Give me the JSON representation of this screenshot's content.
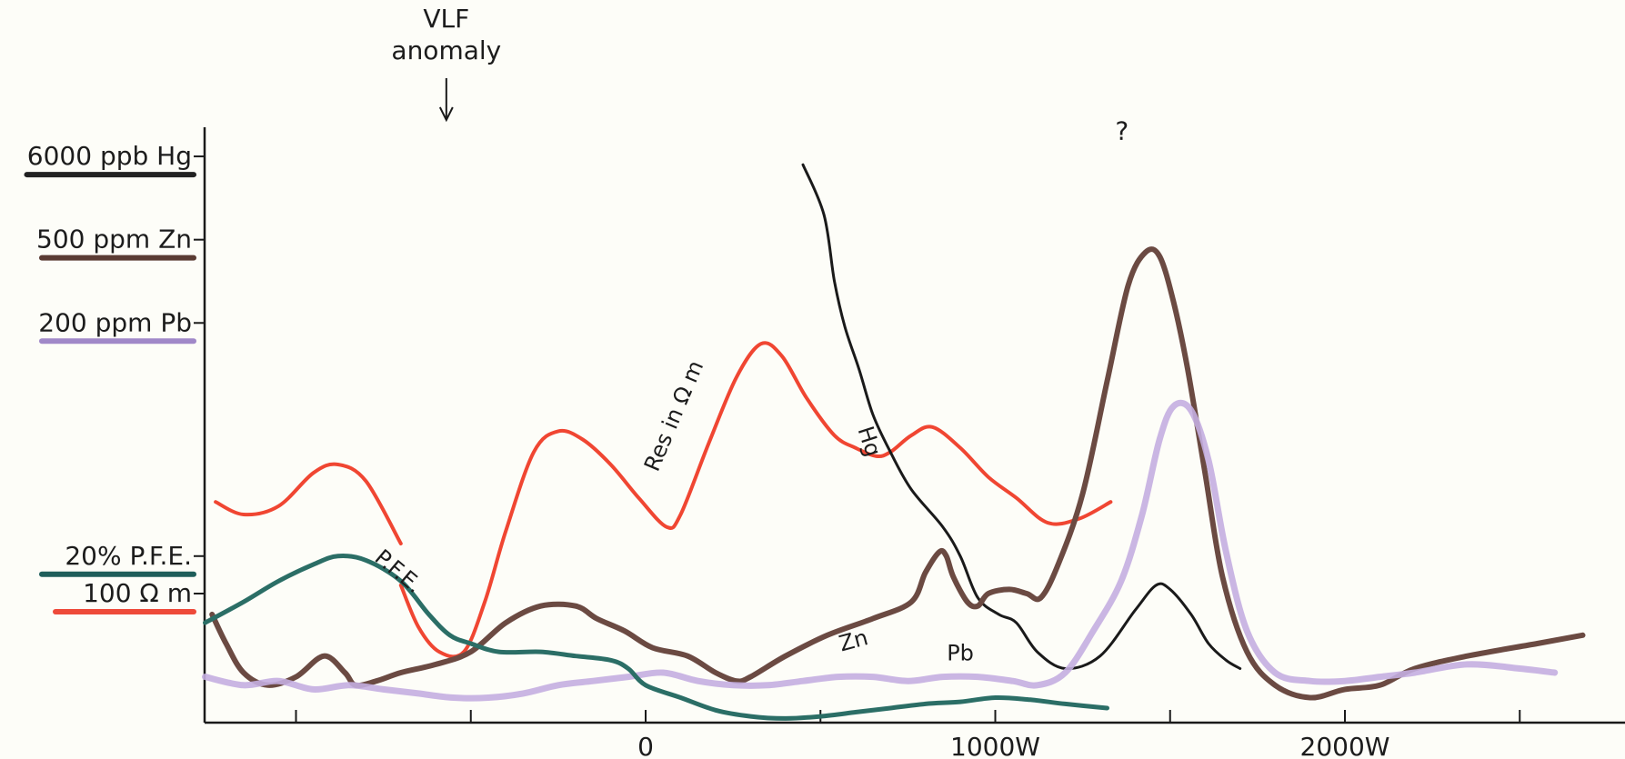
{
  "chart_data": {
    "type": "line",
    "annotation": {
      "line1": "VLF",
      "line2": "anomaly",
      "x": -570
    },
    "x_ticks": [
      {
        "value": -1000,
        "label": ""
      },
      {
        "value": -500,
        "label": ""
      },
      {
        "value": 0,
        "label": "0"
      },
      {
        "value": 500,
        "label": ""
      },
      {
        "value": 1000,
        "label": "1000W"
      },
      {
        "value": 1500,
        "label": ""
      },
      {
        "value": 2000,
        "label": "2000W"
      },
      {
        "value": 2500,
        "label": ""
      }
    ],
    "xlim": [
      -1250,
      2750
    ],
    "y_scale_labels": [
      {
        "text": "6000 ppb Hg",
        "y": 13.6,
        "color": "#222222"
      },
      {
        "text": "500 ppm Zn",
        "y": 11.6,
        "color": "#5a3b33"
      },
      {
        "text": "200 ppm Pb",
        "y": 9.6,
        "color": "#a088c8"
      },
      {
        "text": "20% P.F.E.",
        "y": 4.0,
        "color": "#1e5e5a"
      },
      {
        "text": "100 Ω m",
        "y": 3.1,
        "color": "#ee4a3a"
      }
    ],
    "ylim": [
      0,
      14.3
    ],
    "series": [
      {
        "name": "Res in Ω m",
        "color": "#f04632",
        "width": 4,
        "label": {
          "text": "Res in Ω m",
          "x": 100,
          "y": 7.3,
          "angle": -67
        },
        "segments": [
          {
            "x": [
              -1230,
              -1150,
              -1050,
              -950,
              -880,
              -800,
              -700
            ],
            "y": [
              5.3,
              5.0,
              5.2,
              6.0,
              6.2,
              5.8,
              4.3
            ]
          },
          {
            "x": [
              -700,
              -650,
              -590,
              -520,
              -460,
              -400,
              -320,
              -250,
              -180,
              -100,
              -20,
              60,
              100,
              180,
              260,
              330,
              390,
              460,
              540,
              600,
              660,
              700,
              760,
              820,
              900,
              980,
              1060,
              1150,
              1240,
              1330
            ],
            "y": [
              3.3,
              2.3,
              1.7,
              1.7,
              2.9,
              4.6,
              6.5,
              7.0,
              6.8,
              6.2,
              5.4,
              4.7,
              5.0,
              6.7,
              8.3,
              9.1,
              8.8,
              7.8,
              6.9,
              6.6,
              6.4,
              6.5,
              6.9,
              7.1,
              6.6,
              5.9,
              5.4,
              4.8,
              4.9,
              5.3
            ]
          }
        ]
      },
      {
        "name": "Hg",
        "color": "#1a1a1a",
        "width": 3,
        "label": {
          "text": "Hg",
          "x": 620,
          "y": 6.7,
          "angle": 72
        },
        "segments": [
          {
            "x": [
              450,
              510,
              540,
              570,
              610,
              650,
              700,
              760,
              850,
              900,
              950,
              1010,
              1060,
              1120,
              1200,
              1300,
              1400,
              1460,
              1500,
              1560,
              1610,
              1660,
              1700
            ],
            "y": [
              13.4,
              12.2,
              10.6,
              9.5,
              8.5,
              7.4,
              6.5,
              5.6,
              4.7,
              4.0,
              3.0,
              2.6,
              2.4,
              1.7,
              1.3,
              1.6,
              2.7,
              3.3,
              3.2,
              2.6,
              1.9,
              1.5,
              1.3
            ]
          }
        ]
      },
      {
        "name": "Zn",
        "color": "#6b4a42",
        "width": 6,
        "label": {
          "text": "Zn",
          "x": 600,
          "y": 1.8,
          "angle": -15
        },
        "segments": [
          {
            "x": [
              -1240,
              -1200,
              -1150,
              -1080,
              -1000,
              -920,
              -860,
              -830,
              -770,
              -700,
              -600,
              -500,
              -400,
              -300,
              -200,
              -140,
              -60,
              20,
              120,
              200,
              260,
              300,
              400,
              520,
              650,
              760,
              800,
              840,
              860,
              880,
              920,
              950,
              980,
              1040,
              1090,
              1130,
              1180,
              1250,
              1320,
              1380,
              1430,
              1470,
              1510,
              1550,
              1600,
              1650,
              1720,
              1800,
              1900,
              2000,
              2100,
              2200,
              2350,
              2550,
              2680
            ],
            "y": [
              2.6,
              1.9,
              1.2,
              0.9,
              1.1,
              1.6,
              1.2,
              0.9,
              1.0,
              1.2,
              1.4,
              1.7,
              2.4,
              2.8,
              2.8,
              2.5,
              2.2,
              1.8,
              1.6,
              1.2,
              1.0,
              1.1,
              1.6,
              2.1,
              2.5,
              2.9,
              3.6,
              4.1,
              4.0,
              3.5,
              2.9,
              2.8,
              3.1,
              3.2,
              3.1,
              3.0,
              3.8,
              5.5,
              8.2,
              10.5,
              11.3,
              11.2,
              10.1,
              8.5,
              6.0,
              3.5,
              1.7,
              0.9,
              0.6,
              0.8,
              0.9,
              1.3,
              1.6,
              1.9,
              2.1
            ]
          }
        ]
      },
      {
        "name": "Pb",
        "color": "#c4aee0",
        "width": 7,
        "label": {
          "text": "Pb",
          "x": 900,
          "y": 1.5,
          "angle": 0
        },
        "segments": [
          {
            "x": [
              -1260,
              -1150,
              -1050,
              -950,
              -850,
              -750,
              -650,
              -550,
              -450,
              -350,
              -250,
              -150,
              -50,
              50,
              150,
              250,
              350,
              450,
              550,
              650,
              750,
              850,
              950,
              1050,
              1120,
              1200,
              1280,
              1360,
              1420,
              1470,
              1510,
              1560,
              1610,
              1660,
              1720,
              1800,
              1900,
              2000,
              2100,
              2200,
              2350,
              2500,
              2600
            ],
            "y": [
              1.1,
              0.9,
              1.0,
              0.8,
              0.9,
              0.8,
              0.7,
              0.6,
              0.6,
              0.7,
              0.9,
              1.0,
              1.1,
              1.2,
              1.0,
              0.9,
              0.9,
              1.0,
              1.1,
              1.1,
              1.0,
              1.1,
              1.1,
              1.0,
              0.9,
              1.2,
              2.2,
              3.4,
              5.0,
              6.8,
              7.6,
              7.5,
              6.3,
              4.1,
              2.2,
              1.2,
              1.0,
              1.0,
              1.1,
              1.2,
              1.4,
              1.3,
              1.2
            ]
          }
        ]
      },
      {
        "name": "P.F.E.",
        "color": "#2b6e66",
        "width": 5,
        "label": {
          "text": "P.F.E.",
          "x": -720,
          "y": 3.5,
          "angle": 40
        },
        "segments": [
          {
            "x": [
              -1260,
              -1150,
              -1050,
              -950,
              -880,
              -800,
              -700,
              -620,
              -560,
              -500,
              -420,
              -300,
              -200,
              -100,
              -50,
              0,
              100,
              200,
              300,
              400,
              500,
              600,
              700,
              800,
              900,
              1000,
              1100,
              1200,
              1320
            ],
            "y": [
              2.4,
              2.9,
              3.4,
              3.8,
              4.0,
              3.9,
              3.4,
              2.6,
              2.1,
              1.9,
              1.7,
              1.7,
              1.6,
              1.5,
              1.3,
              0.9,
              0.6,
              0.3,
              0.15,
              0.1,
              0.15,
              0.25,
              0.35,
              0.45,
              0.5,
              0.6,
              0.55,
              0.45,
              0.35
            ]
          }
        ]
      }
    ],
    "question_mark": {
      "text": "?",
      "x": 400,
      "y": 14.0
    }
  }
}
